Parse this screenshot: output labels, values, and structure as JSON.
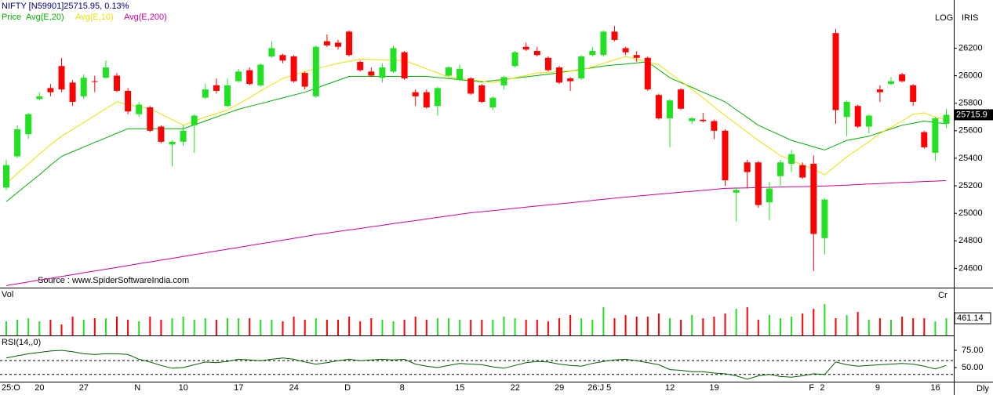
{
  "chart_data": {
    "type": "candlestick",
    "title": "NIFTY [N59901]25715.95,  0.13%",
    "buttons": [
      "LOG",
      "IRIS"
    ],
    "source": "Source : www.SpiderSoftwareIndia.com",
    "period": "Dly",
    "categories": [
      "25:O",
      null,
      null,
      "20",
      null,
      null,
      null,
      "27",
      null,
      null,
      null,
      null,
      "N",
      null,
      null,
      null,
      "10",
      null,
      null,
      null,
      null,
      "17",
      null,
      null,
      null,
      null,
      "24",
      null,
      null,
      null,
      null,
      "D",
      null,
      null,
      null,
      null,
      "8",
      null,
      null,
      null,
      null,
      "15",
      null,
      null,
      null,
      null,
      "22",
      null,
      null,
      null,
      "29",
      null,
      null,
      "26:J 5",
      null,
      null,
      null,
      null,
      null,
      null,
      "12",
      null,
      null,
      null,
      "19",
      null,
      null,
      null,
      null,
      null,
      null,
      null,
      null,
      "F",
      "2",
      null,
      null,
      null,
      null,
      "9",
      null,
      null,
      null,
      null,
      "16",
      null
    ],
    "ylim": [
      24460,
      26550
    ],
    "yticks": [
      24600,
      24800,
      25000,
      25200,
      25400,
      25600,
      25800,
      26000,
      26200
    ],
    "last_price_label": "25715.9",
    "candles": {
      "name": "Price",
      "color": "#00b000",
      "up_color": "#22e022",
      "down_color": "#ff0000",
      "open": [
        25187,
        25414,
        25575,
        25830,
        25910,
        26070,
        25950,
        25850,
        25960,
        25985,
        26000,
        25890,
        25720,
        25770,
        25630,
        25500,
        25520,
        25640,
        25840,
        25930,
        25780,
        25960,
        26040,
        25930,
        26140,
        26150,
        26140,
        26020,
        25850,
        26250,
        26240,
        26320,
        26100,
        26030,
        25985,
        26030,
        26170,
        25880,
        25880,
        25780,
        26000,
        25970,
        25980,
        25930,
        25770,
        25930,
        26070,
        26210,
        26180,
        26130,
        26060,
        25980,
        25980,
        26150,
        26150,
        26320,
        26200,
        26150,
        26130,
        25860,
        25690,
        25900,
        25670,
        25680,
        25670,
        25600,
        25150,
        25370,
        25370,
        25080,
        25270,
        25360,
        25350,
        25360,
        24820,
        26310,
        25700,
        25780,
        25630,
        25900,
        25940,
        26010,
        25930,
        25590,
        25440,
        25650
      ],
      "high": [
        25390,
        25640,
        25730,
        25880,
        25940,
        26130,
        25970,
        26010,
        26000,
        26110,
        26020,
        25910,
        25810,
        25780,
        25640,
        25530,
        25640,
        25720,
        25940,
        25980,
        25980,
        26050,
        26060,
        26090,
        26250,
        26160,
        26150,
        26030,
        26220,
        26300,
        26260,
        26330,
        26110,
        26060,
        26090,
        26220,
        26180,
        25900,
        25900,
        25920,
        26070,
        26080,
        25990,
        25940,
        25850,
        26000,
        26180,
        26240,
        26210,
        26140,
        26070,
        25990,
        26150,
        26210,
        26330,
        26360,
        26210,
        26180,
        26140,
        25870,
        25830,
        25910,
        25700,
        25730,
        25680,
        25610,
        25190,
        25390,
        25380,
        25230,
        25390,
        25460,
        25370,
        25420,
        25110,
        26340,
        25820,
        25790,
        25720,
        25930,
        25990,
        26020,
        25940,
        25600,
        25700,
        25760
      ],
      "low": [
        25170,
        25400,
        25540,
        25820,
        25850,
        25880,
        25780,
        25830,
        25880,
        25980,
        25880,
        25720,
        25700,
        25590,
        25510,
        25340,
        25490,
        25440,
        25830,
        25870,
        25770,
        25950,
        25930,
        25920,
        26130,
        26090,
        25950,
        25900,
        25840,
        26210,
        26190,
        26140,
        26030,
        25990,
        25950,
        26020,
        25970,
        25780,
        25760,
        25710,
        25990,
        25960,
        25860,
        25800,
        25750,
        25900,
        26060,
        26180,
        26140,
        26030,
        25940,
        25890,
        25970,
        26140,
        26140,
        26250,
        26150,
        26100,
        25890,
        25680,
        25480,
        25750,
        25650,
        25660,
        25540,
        25200,
        24940,
        25180,
        25040,
        24950,
        25200,
        25300,
        25250,
        24580,
        24700,
        25650,
        25560,
        25620,
        25580,
        25810,
        25930,
        25950,
        25780,
        25470,
        25380,
        25620
      ],
      "close": [
        25350,
        25610,
        25720,
        25850,
        25880,
        25900,
        25810,
        25985,
        25955,
        26060,
        25890,
        25740,
        25790,
        25600,
        25520,
        25520,
        25600,
        25710,
        25900,
        25890,
        25930,
        26030,
        25940,
        26080,
        26200,
        26110,
        25960,
        25920,
        26210,
        26220,
        26210,
        26150,
        26040,
        26000,
        26060,
        26200,
        25980,
        25850,
        25770,
        25910,
        26060,
        26050,
        25870,
        25810,
        25840,
        25990,
        26170,
        26190,
        26150,
        26040,
        25950,
        25960,
        26140,
        26180,
        26320,
        26260,
        26170,
        26130,
        25900,
        25690,
        25820,
        25760,
        25690,
        25670,
        25600,
        25240,
        25170,
        25300,
        25060,
        25180,
        25370,
        25430,
        25260,
        24850,
        25100,
        25750,
        25810,
        25630,
        25710,
        25880,
        25960,
        25960,
        25810,
        25480,
        25690,
        25715.95
      ]
    },
    "series": [
      {
        "name": "Avg(E,20)",
        "color": "#00b000",
        "values": [
          25085,
          25150,
          25215,
          25280,
          25350,
          25414,
          25448,
          25481,
          25515,
          25548,
          25582,
          25615,
          25615,
          25615,
          25615,
          25615,
          25615,
          25643,
          25671,
          25700,
          25728,
          25756,
          25777,
          25797,
          25818,
          25839,
          25860,
          25880,
          25909,
          25938,
          25966,
          25995,
          25995,
          25995,
          25995,
          25995,
          25995,
          25995,
          25995,
          25987,
          25979,
          25971,
          25963,
          25955,
          25964,
          25973,
          25983,
          25992,
          26001,
          26010,
          26022,
          26034,
          26046,
          26058,
          26070,
          26078,
          26085,
          26093,
          26100,
          26043,
          25985,
          25950,
          25915,
          25880,
          25845,
          25810,
          25753,
          25697,
          25640,
          25603,
          25567,
          25530,
          25507,
          25483,
          25460,
          25495,
          25530,
          25545,
          25560,
          25587,
          25613,
          25640,
          25655,
          25670,
          25660,
          25650
        ]
      },
      {
        "name": "Avg(E,10)",
        "color": "#e8e000",
        "values": [
          25215,
          25290,
          25360,
          25430,
          25500,
          25560,
          25610,
          25660,
          25710,
          25760,
          25810,
          25790,
          25775,
          25760,
          25720,
          25680,
          25640,
          25670,
          25700,
          25725,
          25750,
          25795,
          25840,
          25890,
          25935,
          25980,
          26005,
          26030,
          26050,
          26070,
          26090,
          26105,
          26120,
          26118,
          26115,
          26112,
          26110,
          26080,
          26050,
          26020,
          25990,
          25980,
          25970,
          25960,
          25950,
          25968,
          25985,
          26002,
          26020,
          26025,
          26030,
          26035,
          26040,
          26065,
          26090,
          26115,
          26140,
          26120,
          26100,
          26080,
          26020,
          25960,
          25900,
          25840,
          25775,
          25710,
          25650,
          25590,
          25530,
          25475,
          25420,
          25385,
          25350,
          25320,
          25280,
          25345,
          25410,
          25465,
          25520,
          25580,
          25625,
          25670,
          25720,
          25730,
          25700,
          25680
        ]
      },
      {
        "name": "Avg(E,200)",
        "color": "#cc0099",
        "values": [
          24475,
          24488,
          24501,
          24515,
          24528,
          24541,
          24554,
          24568,
          24581,
          24594,
          24607,
          24620,
          24634,
          24647,
          24660,
          24673,
          24686,
          24700,
          24713,
          24726,
          24739,
          24752,
          24766,
          24779,
          24792,
          24805,
          24818,
          24832,
          24845,
          24856,
          24868,
          24879,
          24890,
          24902,
          24913,
          24925,
          24936,
          24947,
          24959,
          24970,
          24981,
          24993,
          25004,
          25012,
          25020,
          25028,
          25037,
          25045,
          25053,
          25061,
          25069,
          25077,
          25085,
          25094,
          25102,
          25110,
          25118,
          25125,
          25132,
          25139,
          25146,
          25153,
          25160,
          25167,
          25174,
          25181,
          25183,
          25185,
          25187,
          25189,
          25191,
          25193,
          25194,
          25196,
          25198,
          25202,
          25205,
          25209,
          25213,
          25216,
          25220,
          25224,
          25227,
          25231,
          25234,
          25238
        ]
      }
    ],
    "volume": {
      "title": "Vol",
      "unit": "Cr",
      "ylim": [
        0,
        1240
      ],
      "values": [
        378,
        420,
        462,
        378,
        420,
        294,
        504,
        420,
        462,
        462,
        504,
        420,
        378,
        504,
        420,
        462,
        504,
        420,
        462,
        420,
        462,
        462,
        462,
        420,
        420,
        378,
        504,
        420,
        462,
        420,
        420,
        504,
        378,
        462,
        420,
        378,
        420,
        504,
        420,
        462,
        462,
        420,
        420,
        420,
        420,
        504,
        462,
        420,
        420,
        378,
        462,
        546,
        462,
        420,
        756,
        462,
        546,
        504,
        504,
        588,
        462,
        420,
        546,
        462,
        504,
        588,
        714,
        756,
        420,
        546,
        462,
        504,
        588,
        714,
        840,
        462,
        546,
        630,
        420,
        462,
        420,
        504,
        462,
        462,
        378,
        461.14
      ]
    },
    "rsi": {
      "title": "RSI(14,,0)",
      "color": "#006000",
      "ylim": [
        29.5,
        94.3
      ],
      "yticks": [
        {
          "value": 75,
          "label": "75.00"
        },
        {
          "value": 50,
          "label": "50.00"
        }
      ],
      "levels": [
        60,
        40
      ],
      "values": [
        64,
        67,
        70,
        72,
        74,
        75,
        73,
        70,
        69,
        70,
        70,
        69,
        62,
        58,
        53,
        49,
        50,
        54,
        58,
        57,
        59,
        62,
        61,
        60,
        62,
        64,
        62,
        58,
        55,
        57,
        60,
        62,
        60,
        61,
        62,
        61,
        62,
        55,
        52,
        50,
        53,
        56,
        55,
        54,
        51,
        49,
        53,
        57,
        59,
        58,
        55,
        53,
        52,
        56,
        59,
        61,
        62,
        60,
        57,
        54,
        47,
        46,
        44,
        44,
        42,
        41,
        38,
        33,
        38,
        40,
        37,
        36,
        38,
        41,
        40,
        58,
        54,
        52,
        53,
        54,
        55,
        56,
        55,
        52,
        48,
        53
      ]
    }
  }
}
